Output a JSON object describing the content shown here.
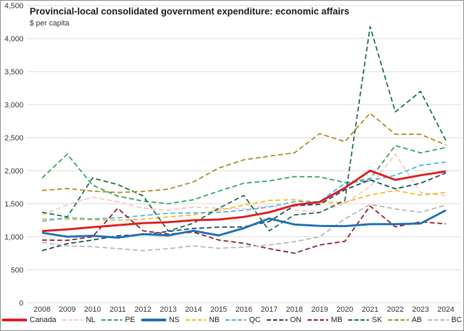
{
  "header": {
    "title": "Provincial-local consolidated government expenditure: economic affairs",
    "subtitle": "$ per capita"
  },
  "chart_data": {
    "type": "line",
    "title": "Provincial-local consolidated government expenditure: economic affairs",
    "subtitle": "$ per capita",
    "x": [
      2008,
      2009,
      2010,
      2011,
      2012,
      2013,
      2014,
      2015,
      2016,
      2017,
      2018,
      2019,
      2020,
      2021,
      2022,
      2023,
      2024
    ],
    "ylim": [
      0,
      4500
    ],
    "ytick_step": 500,
    "yticks": [
      0,
      500,
      1000,
      1500,
      2000,
      2500,
      3000,
      3500,
      4000,
      4500
    ],
    "grid": "horizontal",
    "gridline_color": "#d9d9d9",
    "legend_position": "bottom",
    "series": [
      {
        "name": "Canada",
        "color": "#dd1d21",
        "style": "solid",
        "width": 3,
        "values": [
          1085,
          1110,
          1145,
          1175,
          1205,
          1220,
          1250,
          1260,
          1300,
          1370,
          1480,
          1525,
          1740,
          2000,
          1860,
          1930,
          1990
        ]
      },
      {
        "name": "NL",
        "color": "#f6c6c3",
        "style": "dashed",
        "width": 1.8,
        "values": [
          1330,
          1480,
          1600,
          1530,
          1430,
          1400,
          1450,
          1430,
          1420,
          1470,
          1400,
          1380,
          1500,
          1760,
          2250,
          1670,
          1620
        ]
      },
      {
        "name": "PE",
        "color": "#2fa25c",
        "style": "dashed",
        "width": 1.8,
        "values": [
          1890,
          2250,
          1780,
          1615,
          1540,
          1500,
          1560,
          1690,
          1810,
          1845,
          1910,
          1905,
          1820,
          1875,
          2380,
          2270,
          2350
        ]
      },
      {
        "name": "NS",
        "color": "#1c70b8",
        "style": "solid",
        "width": 3,
        "values": [
          1060,
          1000,
          1015,
          985,
          1040,
          1020,
          1090,
          1020,
          1130,
          1275,
          1185,
          1165,
          1160,
          1190,
          1190,
          1200,
          1400
        ]
      },
      {
        "name": "NB",
        "color": "#f2bb1d",
        "style": "dashed",
        "width": 1.8,
        "values": [
          1270,
          1265,
          1255,
          1250,
          1265,
          1300,
          1330,
          1400,
          1480,
          1550,
          1560,
          1520,
          1520,
          1630,
          1700,
          1630,
          1670
        ]
      },
      {
        "name": "QC",
        "color": "#45b1e8",
        "style": "dashed",
        "width": 1.8,
        "values": [
          1235,
          1290,
          1270,
          1285,
          1320,
          1355,
          1360,
          1370,
          1400,
          1450,
          1530,
          1530,
          1810,
          1850,
          1930,
          2080,
          2130
        ]
      },
      {
        "name": "ON",
        "color": "#1c3e5e",
        "style": "dashed",
        "width": 1.8,
        "values": [
          790,
          895,
          950,
          1015,
          1030,
          1080,
          1125,
          1145,
          1150,
          1230,
          1470,
          1490,
          1710,
          1860,
          1725,
          1810,
          1965
        ]
      },
      {
        "name": "MB",
        "color": "#8c1a1f",
        "style": "dashed",
        "width": 1.8,
        "values": [
          950,
          945,
          1000,
          1430,
          1090,
          1040,
          1070,
          950,
          900,
          820,
          750,
          875,
          930,
          1465,
          1150,
          1225,
          1195
        ]
      },
      {
        "name": "SK",
        "color": "#156e42",
        "style": "dashed",
        "width": 1.8,
        "values": [
          1370,
          1300,
          1890,
          1790,
          1620,
          1085,
          1205,
          1430,
          1625,
          1090,
          1330,
          1365,
          1550,
          4180,
          2890,
          3200,
          2460
        ]
      },
      {
        "name": "AB",
        "color": "#a98b22",
        "style": "dashed",
        "width": 1.8,
        "values": [
          1700,
          1730,
          1690,
          1670,
          1685,
          1720,
          1830,
          2040,
          2165,
          2220,
          2270,
          2560,
          2440,
          2870,
          2550,
          2550,
          2390
        ]
      },
      {
        "name": "BC",
        "color": "#b5b5b5",
        "style": "dashed",
        "width": 1.8,
        "values": [
          915,
          860,
          850,
          820,
          790,
          820,
          860,
          825,
          845,
          875,
          925,
          1000,
          1270,
          1490,
          1420,
          1370,
          1480
        ]
      }
    ]
  }
}
